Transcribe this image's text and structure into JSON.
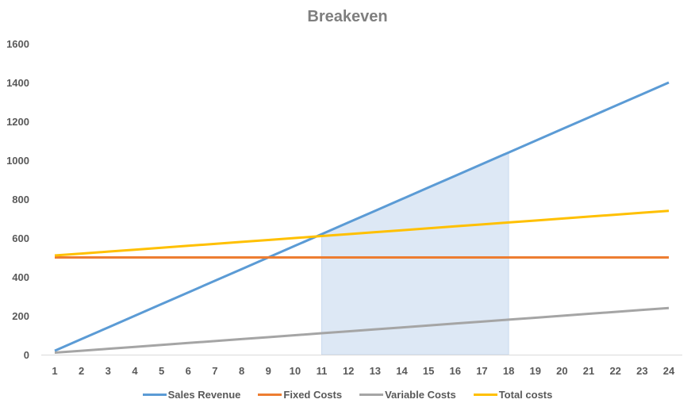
{
  "chart_data": {
    "type": "line",
    "title": "Breakeven",
    "xlabel": "",
    "ylabel": "",
    "x": [
      1,
      2,
      3,
      4,
      5,
      6,
      7,
      8,
      9,
      10,
      11,
      12,
      13,
      14,
      15,
      16,
      17,
      18,
      19,
      20,
      21,
      22,
      23,
      24
    ],
    "ylim": [
      0,
      1600
    ],
    "yticks": [
      0,
      200,
      400,
      600,
      800,
      1000,
      1200,
      1400,
      1600
    ],
    "grid": false,
    "legend_position": "bottom",
    "series": [
      {
        "name": "Sales Revenue",
        "color": "#5b9bd5",
        "values": [
          20,
          80,
          140,
          200,
          260,
          320,
          380,
          440,
          500,
          560,
          620,
          680,
          740,
          800,
          860,
          920,
          980,
          1040,
          1100,
          1160,
          1220,
          1280,
          1340,
          1400
        ]
      },
      {
        "name": "Fixed Costs",
        "color": "#ed7d31",
        "values": [
          500,
          500,
          500,
          500,
          500,
          500,
          500,
          500,
          500,
          500,
          500,
          500,
          500,
          500,
          500,
          500,
          500,
          500,
          500,
          500,
          500,
          500,
          500,
          500
        ]
      },
      {
        "name": "Variable Costs",
        "color": "#a5a5a5",
        "values": [
          10,
          20,
          30,
          40,
          50,
          60,
          70,
          80,
          90,
          100,
          110,
          120,
          130,
          140,
          150,
          160,
          170,
          180,
          190,
          200,
          210,
          220,
          230,
          240
        ]
      },
      {
        "name": "Total costs",
        "color": "#ffc000",
        "values": [
          510,
          520,
          530,
          540,
          550,
          560,
          570,
          580,
          590,
          600,
          610,
          620,
          630,
          640,
          650,
          660,
          670,
          680,
          690,
          700,
          710,
          720,
          730,
          740
        ]
      }
    ],
    "annotations": [
      {
        "type": "shaded-region",
        "x_start": 11,
        "x_end": 18,
        "follows_series": "Sales Revenue",
        "color": "#dde8f5"
      }
    ]
  }
}
